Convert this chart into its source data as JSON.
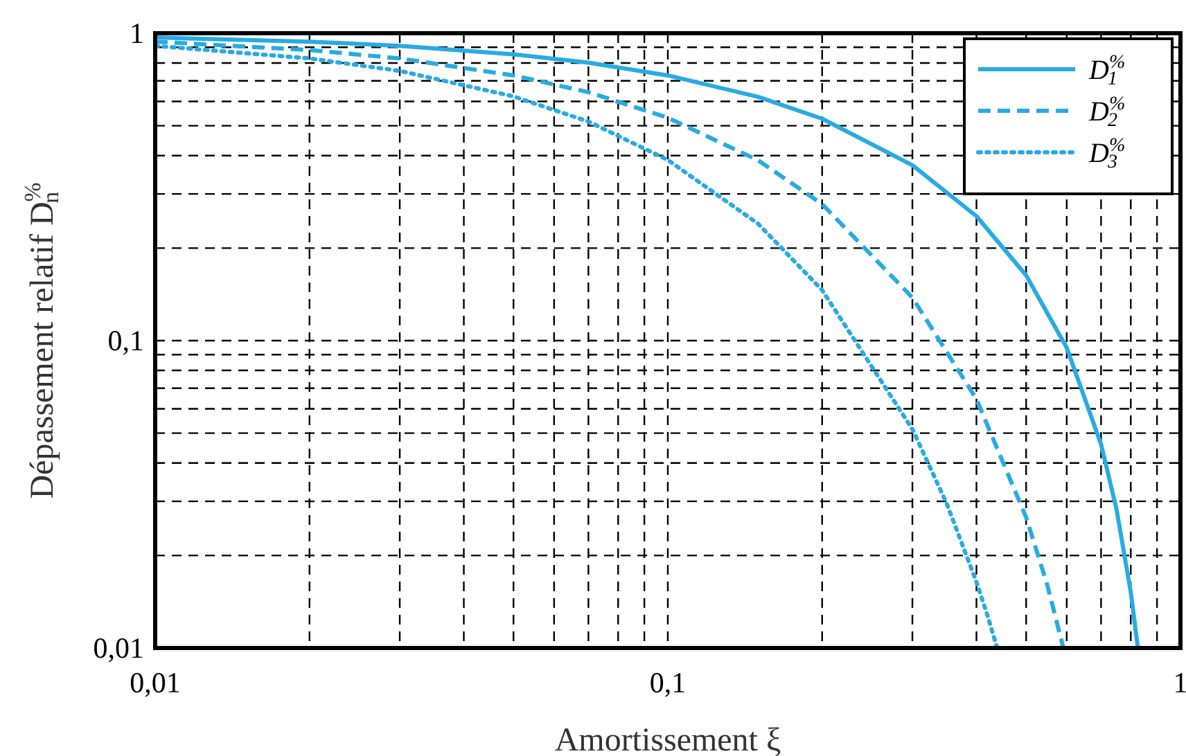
{
  "chart_data": {
    "type": "line",
    "xlabel": "Amortissement ξ",
    "ylabel": "Dépassement relatif D$^{%}$$_{n}$",
    "log": "xy",
    "grid": true,
    "legend": "top right",
    "xlim": [
      0.01,
      1
    ],
    "ylim": [
      0.01,
      1
    ],
    "xticks": [
      {
        "value": 0.01,
        "label": "0,01"
      },
      {
        "value": 0.02,
        "label": null
      },
      {
        "value": 0.03,
        "label": null
      },
      {
        "value": 0.04,
        "label": null
      },
      {
        "value": 0.05,
        "label": null
      },
      {
        "value": 0.06,
        "label": null
      },
      {
        "value": 0.07,
        "label": null
      },
      {
        "value": 0.08,
        "label": null
      },
      {
        "value": 0.09,
        "label": null
      },
      {
        "value": 0.1,
        "label": "0,1"
      },
      {
        "value": 0.2,
        "label": null
      },
      {
        "value": 0.3,
        "label": null
      },
      {
        "value": 0.4,
        "label": null
      },
      {
        "value": 0.5,
        "label": null
      },
      {
        "value": 0.6,
        "label": null
      },
      {
        "value": 0.7,
        "label": null
      },
      {
        "value": 0.8,
        "label": null
      },
      {
        "value": 0.9,
        "label": null
      },
      1
    ],
    "yticks": [
      {
        "value": 0.01,
        "label": "0,01"
      },
      {
        "value": 0.02,
        "label": null
      },
      {
        "value": 0.03,
        "label": null
      },
      {
        "value": 0.04,
        "label": null
      },
      {
        "value": 0.05,
        "label": null
      },
      {
        "value": 0.06,
        "label": null
      },
      {
        "value": 0.07,
        "label": null
      },
      {
        "value": 0.08,
        "label": null
      },
      {
        "value": 0.09,
        "label": null
      },
      {
        "value": 0.1,
        "label": "0,1"
      },
      {
        "value": 0.2,
        "label": null
      },
      {
        "value": 0.3,
        "label": null
      },
      {
        "value": 0.4,
        "label": null
      },
      {
        "value": 0.5,
        "label": null
      },
      {
        "value": 0.6,
        "label": null
      },
      {
        "value": 0.7,
        "label": null
      },
      {
        "value": 0.8,
        "label": null
      },
      {
        "value": 0.9,
        "label": null
      },
      1
    ],
    "series": [
      {
        "name": "D$^{%}$$_{1}$",
        "color": "#29abe2",
        "line_style": "solid",
        "x": [
          0.01,
          0.02,
          0.03,
          0.05,
          0.07,
          0.1,
          0.15,
          0.2,
          0.3,
          0.4,
          0.5,
          0.6,
          0.7,
          0.75,
          0.8,
          0.826
        ],
        "values": [
          0.969,
          0.939,
          0.91,
          0.854,
          0.802,
          0.729,
          0.621,
          0.527,
          0.372,
          0.254,
          0.163,
          0.0948,
          0.046,
          0.0284,
          0.0152,
          0.01
        ]
      },
      {
        "name": "D$^{%}$$_{2}$",
        "color": "#29abe2",
        "line_style": "dashed",
        "x": [
          0.01,
          0.02,
          0.03,
          0.05,
          0.07,
          0.1,
          0.15,
          0.2,
          0.3,
          0.4,
          0.5,
          0.55,
          0.591
        ],
        "values": [
          0.939,
          0.882,
          0.828,
          0.729,
          0.643,
          0.531,
          0.386,
          0.278,
          0.138,
          0.0645,
          0.0266,
          0.016,
          0.01
        ]
      },
      {
        "name": "D$^{%}$$_{3}$",
        "color": "#29abe2",
        "line_style": "dotted",
        "x": [
          0.01,
          0.02,
          0.03,
          0.05,
          0.07,
          0.1,
          0.15,
          0.2,
          0.3,
          0.35,
          0.4,
          0.42,
          0.439
        ],
        "values": [
          0.91,
          0.828,
          0.754,
          0.623,
          0.516,
          0.387,
          0.24,
          0.146,
          0.0515,
          0.0295,
          0.0164,
          0.0128,
          0.01
        ]
      }
    ]
  }
}
